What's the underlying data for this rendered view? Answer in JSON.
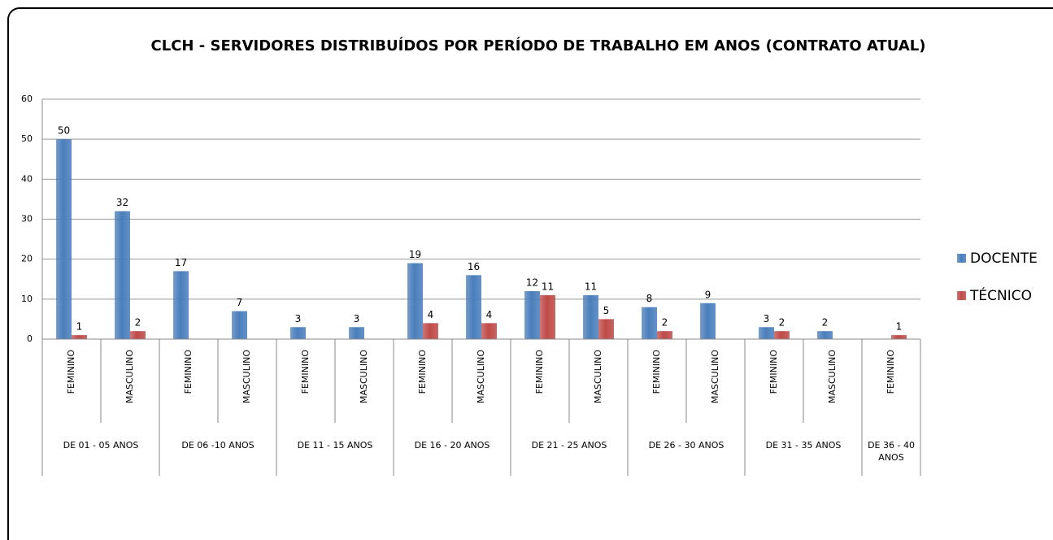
{
  "chart_data": {
    "type": "bar",
    "title": "CLCH - SERVIDORES DISTRIBUÍDOS POR PERÍODO DE TRABALHO EM ANOS (CONTRATO ATUAL)",
    "groups": [
      {
        "label": "DE 01 - 05 ANOS",
        "categories": [
          "FEMININO",
          "MASCULINO"
        ]
      },
      {
        "label": "DE 06 -10 ANOS",
        "categories": [
          "FEMININO",
          "MASCULINO"
        ]
      },
      {
        "label": "DE 11 - 15 ANOS",
        "categories": [
          "FEMININO",
          "MASCULINO"
        ]
      },
      {
        "label": "DE 16 - 20 ANOS",
        "categories": [
          "FEMININO",
          "MASCULINO"
        ]
      },
      {
        "label": "DE 21 - 25 ANOS",
        "categories": [
          "FEMININO",
          "MASCULINO"
        ]
      },
      {
        "label": "DE 26 - 30 ANOS",
        "categories": [
          "FEMININO",
          "MASCULINO"
        ]
      },
      {
        "label": "DE 31 - 35 ANOS",
        "categories": [
          "FEMININO",
          "MASCULINO"
        ]
      },
      {
        "label": "DE 36 - 40 ANOS",
        "categories": [
          "FEMININO"
        ]
      }
    ],
    "series": [
      {
        "name": "DOCENTE",
        "color": "#4a7ebb",
        "values": [
          50,
          32,
          17,
          7,
          3,
          3,
          19,
          16,
          12,
          11,
          8,
          9,
          3,
          2,
          null
        ]
      },
      {
        "name": "TÉCNICO",
        "color": "#be4b48",
        "values": [
          1,
          2,
          null,
          null,
          null,
          null,
          4,
          4,
          11,
          5,
          2,
          null,
          2,
          null,
          1
        ]
      }
    ],
    "ylim": [
      0,
      60
    ],
    "yticks": [
      0,
      10,
      20,
      30,
      40,
      50,
      60
    ],
    "grid": true,
    "legend": "right"
  }
}
